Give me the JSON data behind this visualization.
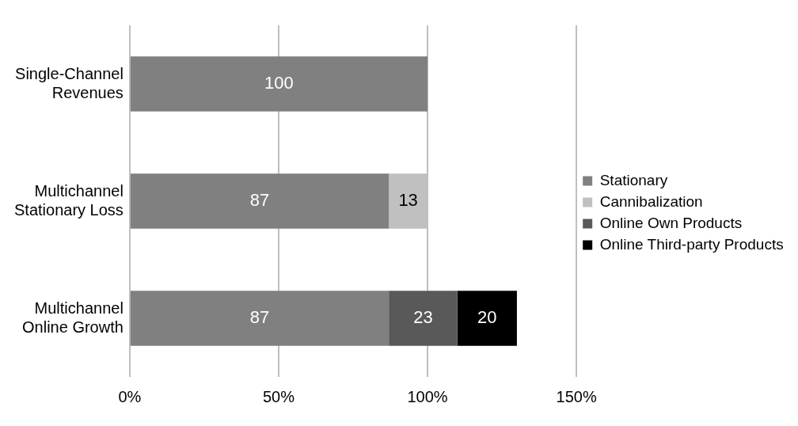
{
  "chart_data": {
    "type": "bar",
    "orientation": "horizontal",
    "stacked": true,
    "categories": [
      "Single-Channel Revenues",
      "Multichannel Stationary Loss",
      "Multichannel Online Growth"
    ],
    "series": [
      {
        "name": "Stationary",
        "color": "#808080",
        "values": [
          100,
          87,
          87
        ]
      },
      {
        "name": "Cannibalization",
        "color": "#c0c0c0",
        "values": [
          null,
          13,
          null
        ]
      },
      {
        "name": "Online Own Products",
        "color": "#595959",
        "values": [
          null,
          null,
          23
        ]
      },
      {
        "name": "Online Third-party Products",
        "color": "#000000",
        "values": [
          null,
          null,
          20
        ]
      }
    ],
    "xlim": [
      0,
      150
    ],
    "xticks": [
      {
        "value": 0,
        "label": "0%"
      },
      {
        "value": 50,
        "label": "50%"
      },
      {
        "value": 100,
        "label": "100%"
      },
      {
        "value": 150,
        "label": "150%"
      }
    ],
    "grid": "x",
    "legend": "right",
    "data_labels": true
  }
}
